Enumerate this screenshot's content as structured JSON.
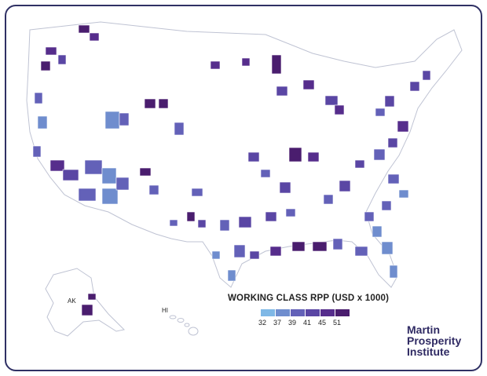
{
  "map": {
    "labels": {
      "alaska": "AK",
      "hawaii": "HI"
    },
    "colors": {
      "state_fill": "#ffffff",
      "state_border": "#bfc3d3",
      "frame_border": "#2f3064"
    }
  },
  "legend": {
    "title": "WORKING CLASS RPP (USD x 1000)",
    "bins": [
      {
        "value": "32",
        "color": "#7fb8e6"
      },
      {
        "value": "37",
        "color": "#6f8dce"
      },
      {
        "value": "39",
        "color": "#6361b8"
      },
      {
        "value": "41",
        "color": "#5a46a4"
      },
      {
        "value": "45",
        "color": "#562d8c"
      },
      {
        "value": "51",
        "color": "#4a1d6e"
      }
    ]
  },
  "brand": {
    "line1": "Martin",
    "line2": "Prosperity",
    "line3": "Institute"
  }
}
